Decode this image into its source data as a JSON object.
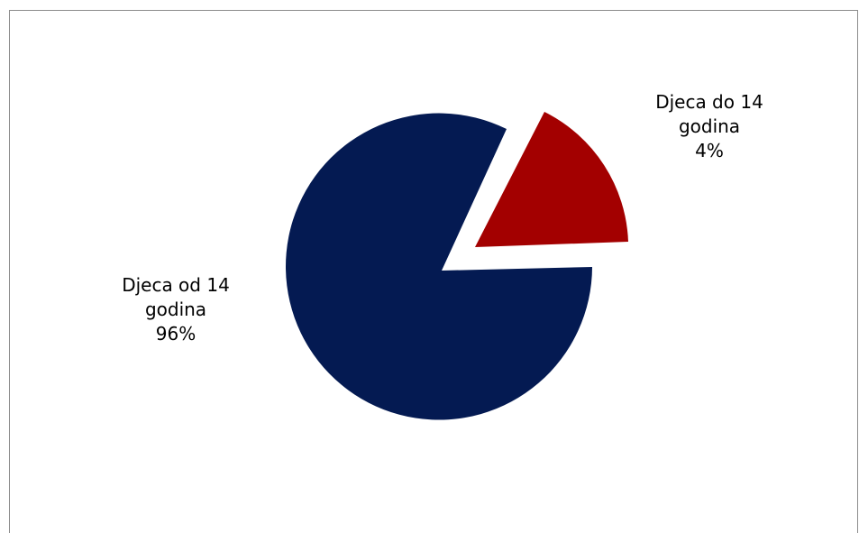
{
  "colors": {
    "dark_navy": "#041a52",
    "dark_red": "#a30000",
    "frame_border": "#8c8c8c"
  },
  "chart_data": {
    "type": "pie",
    "title": "",
    "slices": [
      {
        "label_line1": "Djeca do 14",
        "label_line2": "godina",
        "percent_text": "4%",
        "value": 4,
        "color": "#a30000",
        "exploded": true
      },
      {
        "label_line1": "Djeca od 14",
        "label_line2": "godina",
        "percent_text": "96%",
        "value": 96,
        "color": "#041a52",
        "exploded": false
      }
    ],
    "legend": "none"
  }
}
